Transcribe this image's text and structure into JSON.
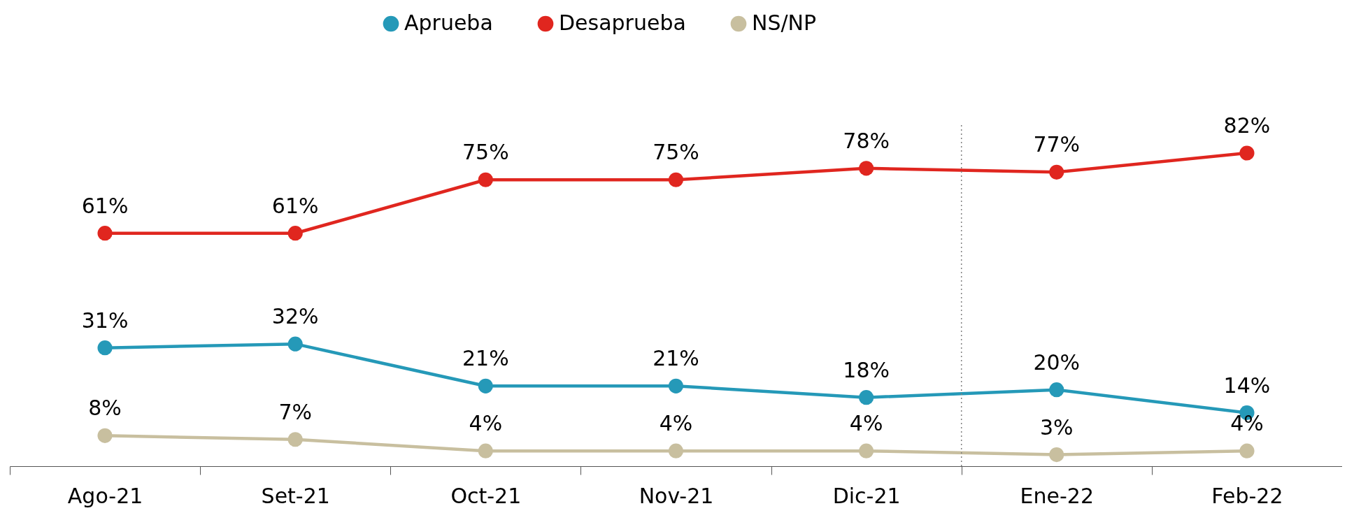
{
  "chart_data": {
    "type": "line",
    "categories": [
      "Ago-21",
      "Set-21",
      "Oct-21",
      "Nov-21",
      "Dic-21",
      "Ene-22",
      "Feb-22"
    ],
    "series": [
      {
        "name": "Aprueba",
        "color": "#2599b8",
        "values": [
          31,
          32,
          21,
          21,
          18,
          20,
          14
        ],
        "value_labels": [
          "31%",
          "32%",
          "21%",
          "21%",
          "18%",
          "20%",
          "14%"
        ]
      },
      {
        "name": "Desaprueba",
        "color": "#e0261f",
        "values": [
          61,
          61,
          75,
          75,
          78,
          77,
          82
        ],
        "value_labels": [
          "61%",
          "61%",
          "75%",
          "75%",
          "78%",
          "77%",
          "82%"
        ]
      },
      {
        "name": "NS/NP",
        "color": "#c8bf9f",
        "values": [
          8,
          7,
          4,
          4,
          4,
          3,
          4
        ],
        "value_labels": [
          "8%",
          "7%",
          "4%",
          "4%",
          "4%",
          "3%",
          "4%"
        ]
      }
    ],
    "tick_labels": "x",
    "grid": false,
    "legend": "top",
    "marker": "circle",
    "line_style": "solid"
  }
}
